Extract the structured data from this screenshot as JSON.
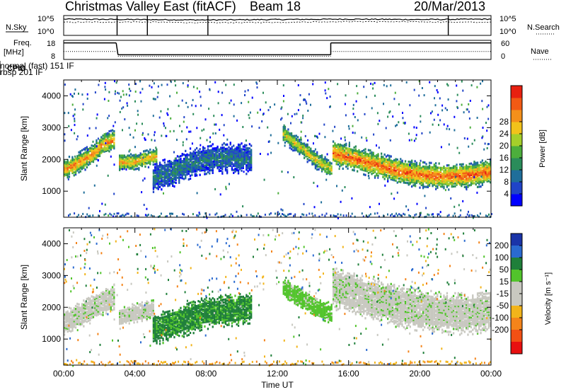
{
  "header": {
    "station": "Christmas Valley East (fitACF)",
    "beam": "Beam 18",
    "date": "20/Mar/2013"
  },
  "chart_data": [
    {
      "type": "line",
      "name": "noise",
      "left_label": "N.Sky",
      "right_label": "N.Search",
      "left_ticks": [
        "10^5",
        "10^0"
      ],
      "right_ticks": [
        "10^5",
        "10^0"
      ],
      "x": [
        "00:00",
        "04:00",
        "08:00",
        "12:00",
        "16:00",
        "20:00",
        "00:00"
      ],
      "series": [
        {
          "values": [
            4.1,
            4.0,
            3.9,
            4.0,
            4.1,
            4.0,
            4.1
          ]
        },
        {
          "values": [
            3.3,
            3.4,
            3.2,
            3.3,
            3.5,
            3.4,
            3.3
          ]
        }
      ]
    },
    {
      "type": "line",
      "name": "frequency",
      "left_label_1": "Freq.",
      "left_label_2": "[MHz]",
      "left_ticks": [
        "18",
        "8"
      ],
      "right_label": "Nave",
      "right_ticks": [
        "60",
        "0"
      ],
      "cpid_label": "CPID",
      "cpid_segments": [
        {
          "label": "rbsp 201 IF",
          "start_hour": 0
        },
        {
          "label": "normal (fast) 151 IF",
          "start_hour": 6
        }
      ],
      "freq_segments": [
        {
          "start": 0,
          "end": 2.95,
          "mhz": 17.5
        },
        {
          "start": 3.05,
          "end": 15.0,
          "mhz": 10.7
        },
        {
          "start": 15.0,
          "end": 24.0,
          "mhz": 17.5
        }
      ],
      "nave_segments": [
        {
          "start": 0,
          "end": 2.95,
          "value": 25
        },
        {
          "start": 3.05,
          "end": 15.0,
          "value": 10
        },
        {
          "start": 15.0,
          "end": 24.0,
          "value": 25
        }
      ]
    },
    {
      "type": "heatmap",
      "name": "power",
      "ylabel": "Slant Range [km]",
      "ylim": [
        180,
        4500
      ],
      "xlim_hours": [
        0,
        24
      ],
      "y_ticks": [
        1000,
        2000,
        3000,
        4000
      ],
      "colorbar_label": "Power [dB]",
      "colorbar_ticks": [
        4,
        8,
        12,
        16,
        20,
        24,
        28
      ],
      "colorbar_colors": [
        "#0000ff",
        "#2044c8",
        "#1f6e9a",
        "#2a8c5a",
        "#4cae3c",
        "#a5cf2a",
        "#f2c21a",
        "#f4901a",
        "#f25a14",
        "#e82010"
      ],
      "bands": [
        {
          "t0": 0.0,
          "t1": 2.8,
          "center": [
            1700,
            1800,
            2000,
            2200,
            2500,
            2600
          ],
          "width": 220,
          "power": 22
        },
        {
          "t0": 3.1,
          "t1": 5.2,
          "center": [
            1900,
            1900,
            2000,
            2100
          ],
          "width": 180,
          "power": 20
        },
        {
          "t0": 5.0,
          "t1": 10.5,
          "center": [
            1400,
            1600,
            1900,
            2000,
            2050,
            2000
          ],
          "width": 300,
          "power": 8
        },
        {
          "t0": 12.3,
          "t1": 15.0,
          "center": [
            2800,
            2500,
            2200,
            1900,
            1700
          ],
          "width": 180,
          "power": 18
        },
        {
          "t0": 15.1,
          "t1": 24.0,
          "center": [
            2200,
            2000,
            1800,
            1600,
            1500,
            1450,
            1500,
            1600
          ],
          "width": 260,
          "power": 24
        }
      ]
    },
    {
      "type": "heatmap",
      "name": "velocity",
      "ylabel": "Slant Range [km]",
      "xlabel": "Time UT",
      "ylim": [
        180,
        4500
      ],
      "xlim_hours": [
        0,
        24
      ],
      "y_ticks": [
        1000,
        2000,
        3000,
        4000
      ],
      "x_tick_labels": [
        "00:00",
        "04:00",
        "08:00",
        "12:00",
        "16:00",
        "20:00",
        "00:00"
      ],
      "colorbar_label": "Velocity [m s⁻¹]",
      "colorbar_ticks": [
        "200",
        "100",
        "50",
        "15",
        "-15",
        "-50",
        "-100",
        "-200"
      ],
      "colorbar_colors": [
        "#1a34a8",
        "#2a6ad0",
        "#1f7f3a",
        "#52c42c",
        "#c8c8c0",
        "#c8c8c0",
        "#f2b41a",
        "#f4841a",
        "#f25014",
        "#e81010"
      ],
      "bands": [
        {
          "t0": 0.0,
          "t1": 2.8,
          "center": [
            1500,
            1700,
            1900,
            2100,
            2300
          ],
          "width": 260,
          "velocity": 0
        },
        {
          "t0": 3.1,
          "t1": 5.0,
          "center": [
            1700,
            1800,
            1900
          ],
          "width": 200,
          "velocity": 0
        },
        {
          "t0": 5.0,
          "t1": 10.5,
          "center": [
            1300,
            1500,
            1800,
            1900,
            1950
          ],
          "width": 320,
          "velocity": 60
        },
        {
          "t0": 12.3,
          "t1": 15.0,
          "center": [
            2600,
            2300,
            2000,
            1800
          ],
          "width": 200,
          "velocity": 30
        },
        {
          "t0": 15.1,
          "t1": 24.0,
          "center": [
            2600,
            2400,
            2200,
            2000,
            1900,
            1800,
            1800,
            1900
          ],
          "width": 420,
          "velocity": 0
        }
      ]
    }
  ]
}
